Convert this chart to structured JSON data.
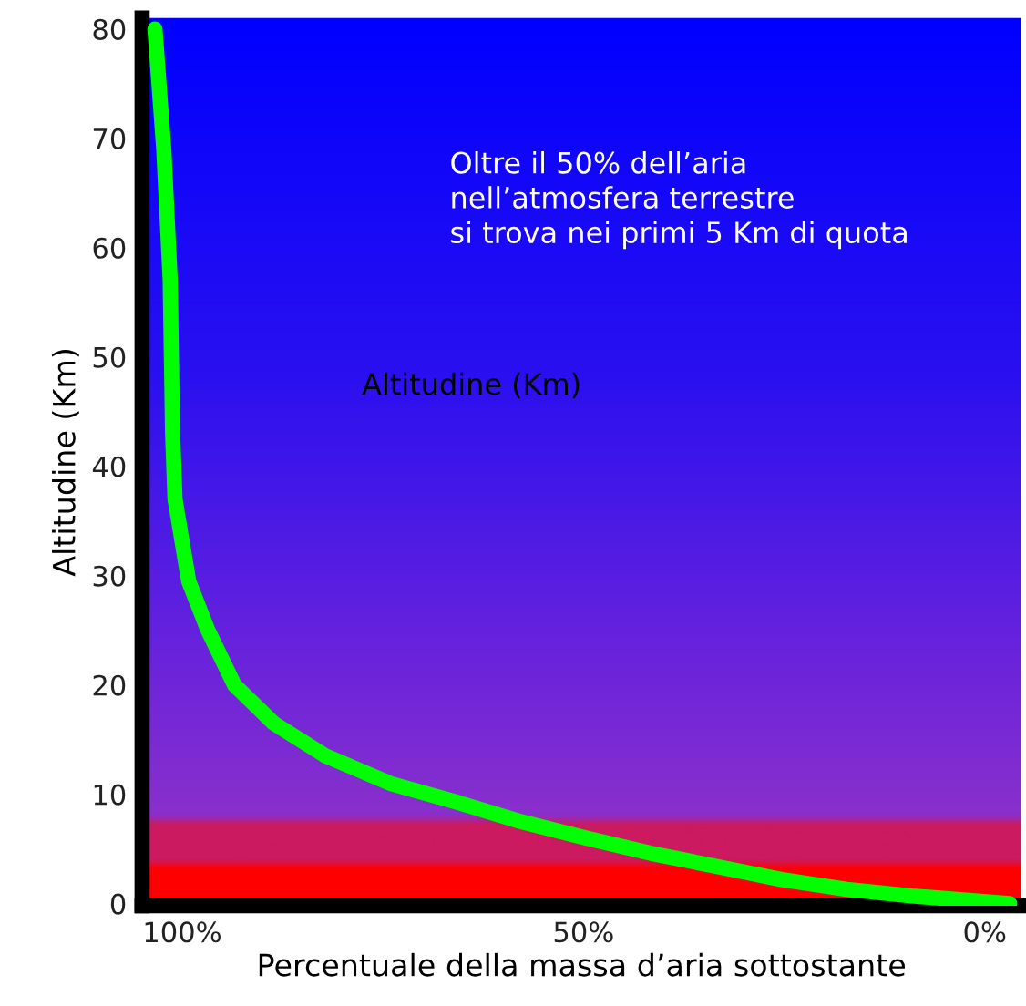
{
  "chart_data": {
    "type": "line",
    "xlabel": "Percentuale della massa d’aria sottostante",
    "ylabel": "Altitudine (Km)",
    "annotations": [
      "Oltre il 50% dell’aria\nnell’atmosfera terrestre\nsi trova nei primi 5 Km di quota",
      "Altitudine (Km)"
    ],
    "series": [
      {
        "color": "#00ff00",
        "x": [
          103.4,
          102.3,
          101.5,
          101.2,
          100.9,
          99.2,
          96.8,
          93.5,
          88.6,
          82.1,
          74.1,
          65.9,
          57.8,
          49.7,
          41.6,
          33.4,
          25.3,
          17.2,
          9.1,
          -3.1
        ],
        "values": [
          80,
          69,
          57,
          43,
          37,
          29.5,
          25,
          20,
          16.5,
          13.5,
          11,
          9.3,
          7.5,
          6,
          4.6,
          3.4,
          2.2,
          1.3,
          0.7,
          0
        ]
      }
    ],
    "xlim": [
      105,
      -4.5
    ],
    "ylim": [
      -0.2,
      81
    ],
    "xticks": [
      {
        "value": 100,
        "label": "100%"
      },
      {
        "value": 50,
        "label": "50%"
      },
      {
        "value": 0,
        "label": "0%"
      }
    ],
    "yticks": [
      0,
      10,
      20,
      30,
      40,
      50,
      60,
      70,
      80
    ],
    "grid": false,
    "marker": "none",
    "line_style": "solid"
  }
}
